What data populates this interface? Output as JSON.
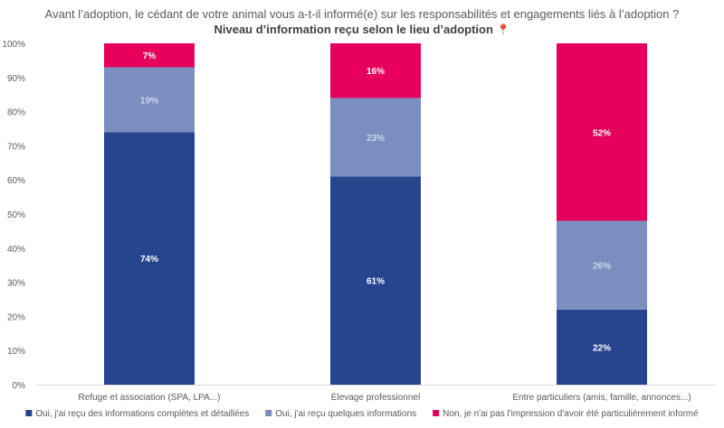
{
  "chart_data": {
    "type": "bar",
    "stacked": true,
    "percent": true,
    "title": "Avant l’adoption, le cédant de votre animal vous a-t-il informé(e) sur les responsabilités et engagements liés à l’adoption ?",
    "subtitle": "Niveau d’information reçu selon le lieu d’adoption",
    "subtitle_icon": "map-pin-icon",
    "categories": [
      "Refuge et association (SPA, LPA...)",
      "Élevage professionnel",
      "Entre particuliers (amis, famille, annonces...)"
    ],
    "series": [
      {
        "name": "Oui, j'ai reçu des informations complètes et détaillées",
        "values": [
          74,
          61,
          22
        ],
        "labels": [
          "74%",
          "61%",
          "22%"
        ],
        "color": "#27458f",
        "label_color": "#ffffff",
        "label_bold": true
      },
      {
        "name": "Oui, j'ai reçu quelques informations",
        "values": [
          19,
          23,
          26
        ],
        "labels": [
          "19%",
          "23%",
          "26%"
        ],
        "color": "#7a8fc0",
        "label_color": "#eef1f8",
        "label_bold": false
      },
      {
        "name": "Non, je n'ai pas l'impression d'avoir été particulièrement informé",
        "values": [
          7,
          16,
          52
        ],
        "labels": [
          "7%",
          "16%",
          "52%"
        ],
        "color": "#e6005c",
        "label_color": "#ffffff",
        "label_bold": true
      }
    ],
    "ylim": [
      0,
      100
    ],
    "yticks": [
      "0%",
      "10%",
      "20%",
      "30%",
      "40%",
      "50%",
      "60%",
      "70%",
      "80%",
      "90%",
      "100%"
    ],
    "grid": false,
    "legend": "bottom"
  }
}
